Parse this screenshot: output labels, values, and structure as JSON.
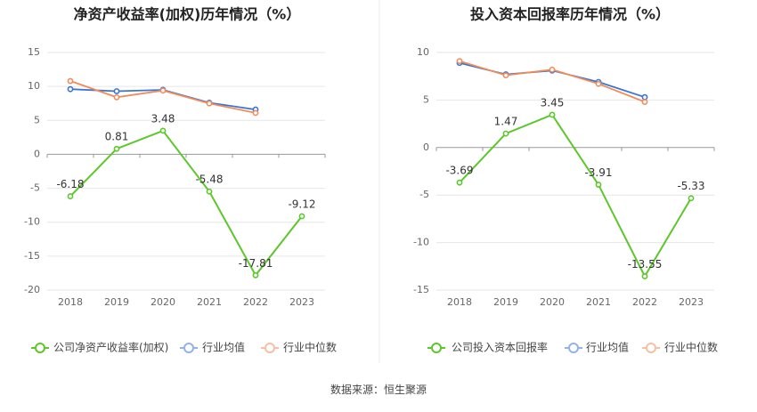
{
  "source_label": "数据来源：恒生聚源",
  "chart_data": [
    {
      "type": "line",
      "title": "净资产收益率(加权)历年情况（%）",
      "categories": [
        "2018",
        "2019",
        "2020",
        "2021",
        "2022",
        "2023"
      ],
      "ylim": [
        -20,
        15
      ],
      "yticks": [
        15,
        10,
        5,
        0,
        -5,
        -10,
        -15,
        -20
      ],
      "grid": true,
      "legend_position": "bottom-left",
      "series": [
        {
          "name": "公司净资产收益率(加权)",
          "color": "#5cc72b",
          "values": [
            -6.18,
            0.81,
            3.48,
            -5.48,
            -17.81,
            -9.12
          ],
          "labels": [
            "-6.18",
            "0.81",
            "3.48",
            "-5.48",
            "-17.81",
            "-9.12"
          ]
        },
        {
          "name": "行业均值",
          "color": "#3a74d6",
          "values": [
            9.6,
            9.3,
            9.5,
            7.6,
            6.6,
            null
          ]
        },
        {
          "name": "行业中位数",
          "color": "#f08c5a",
          "values": [
            10.8,
            8.4,
            9.4,
            7.5,
            6.1,
            null
          ]
        }
      ]
    },
    {
      "type": "line",
      "title": "投入资本回报率历年情况（%）",
      "categories": [
        "2018",
        "2019",
        "2020",
        "2021",
        "2022",
        "2023"
      ],
      "ylim": [
        -15,
        10
      ],
      "yticks": [
        10,
        5,
        0,
        -5,
        -10,
        -15
      ],
      "grid": true,
      "legend_position": "bottom-left",
      "series": [
        {
          "name": "公司投入资本回报率",
          "color": "#5cc72b",
          "values": [
            -3.69,
            1.47,
            3.45,
            -3.91,
            -13.55,
            -5.33
          ],
          "labels": [
            "-3.69",
            "1.47",
            "3.45",
            "-3.91",
            "-13.55",
            "-5.33"
          ]
        },
        {
          "name": "行业均值",
          "color": "#3a74d6",
          "values": [
            8.9,
            7.7,
            8.1,
            6.9,
            5.3,
            null
          ]
        },
        {
          "name": "行业中位数",
          "color": "#f08c5a",
          "values": [
            9.1,
            7.6,
            8.2,
            6.7,
            4.8,
            null
          ]
        }
      ]
    }
  ]
}
